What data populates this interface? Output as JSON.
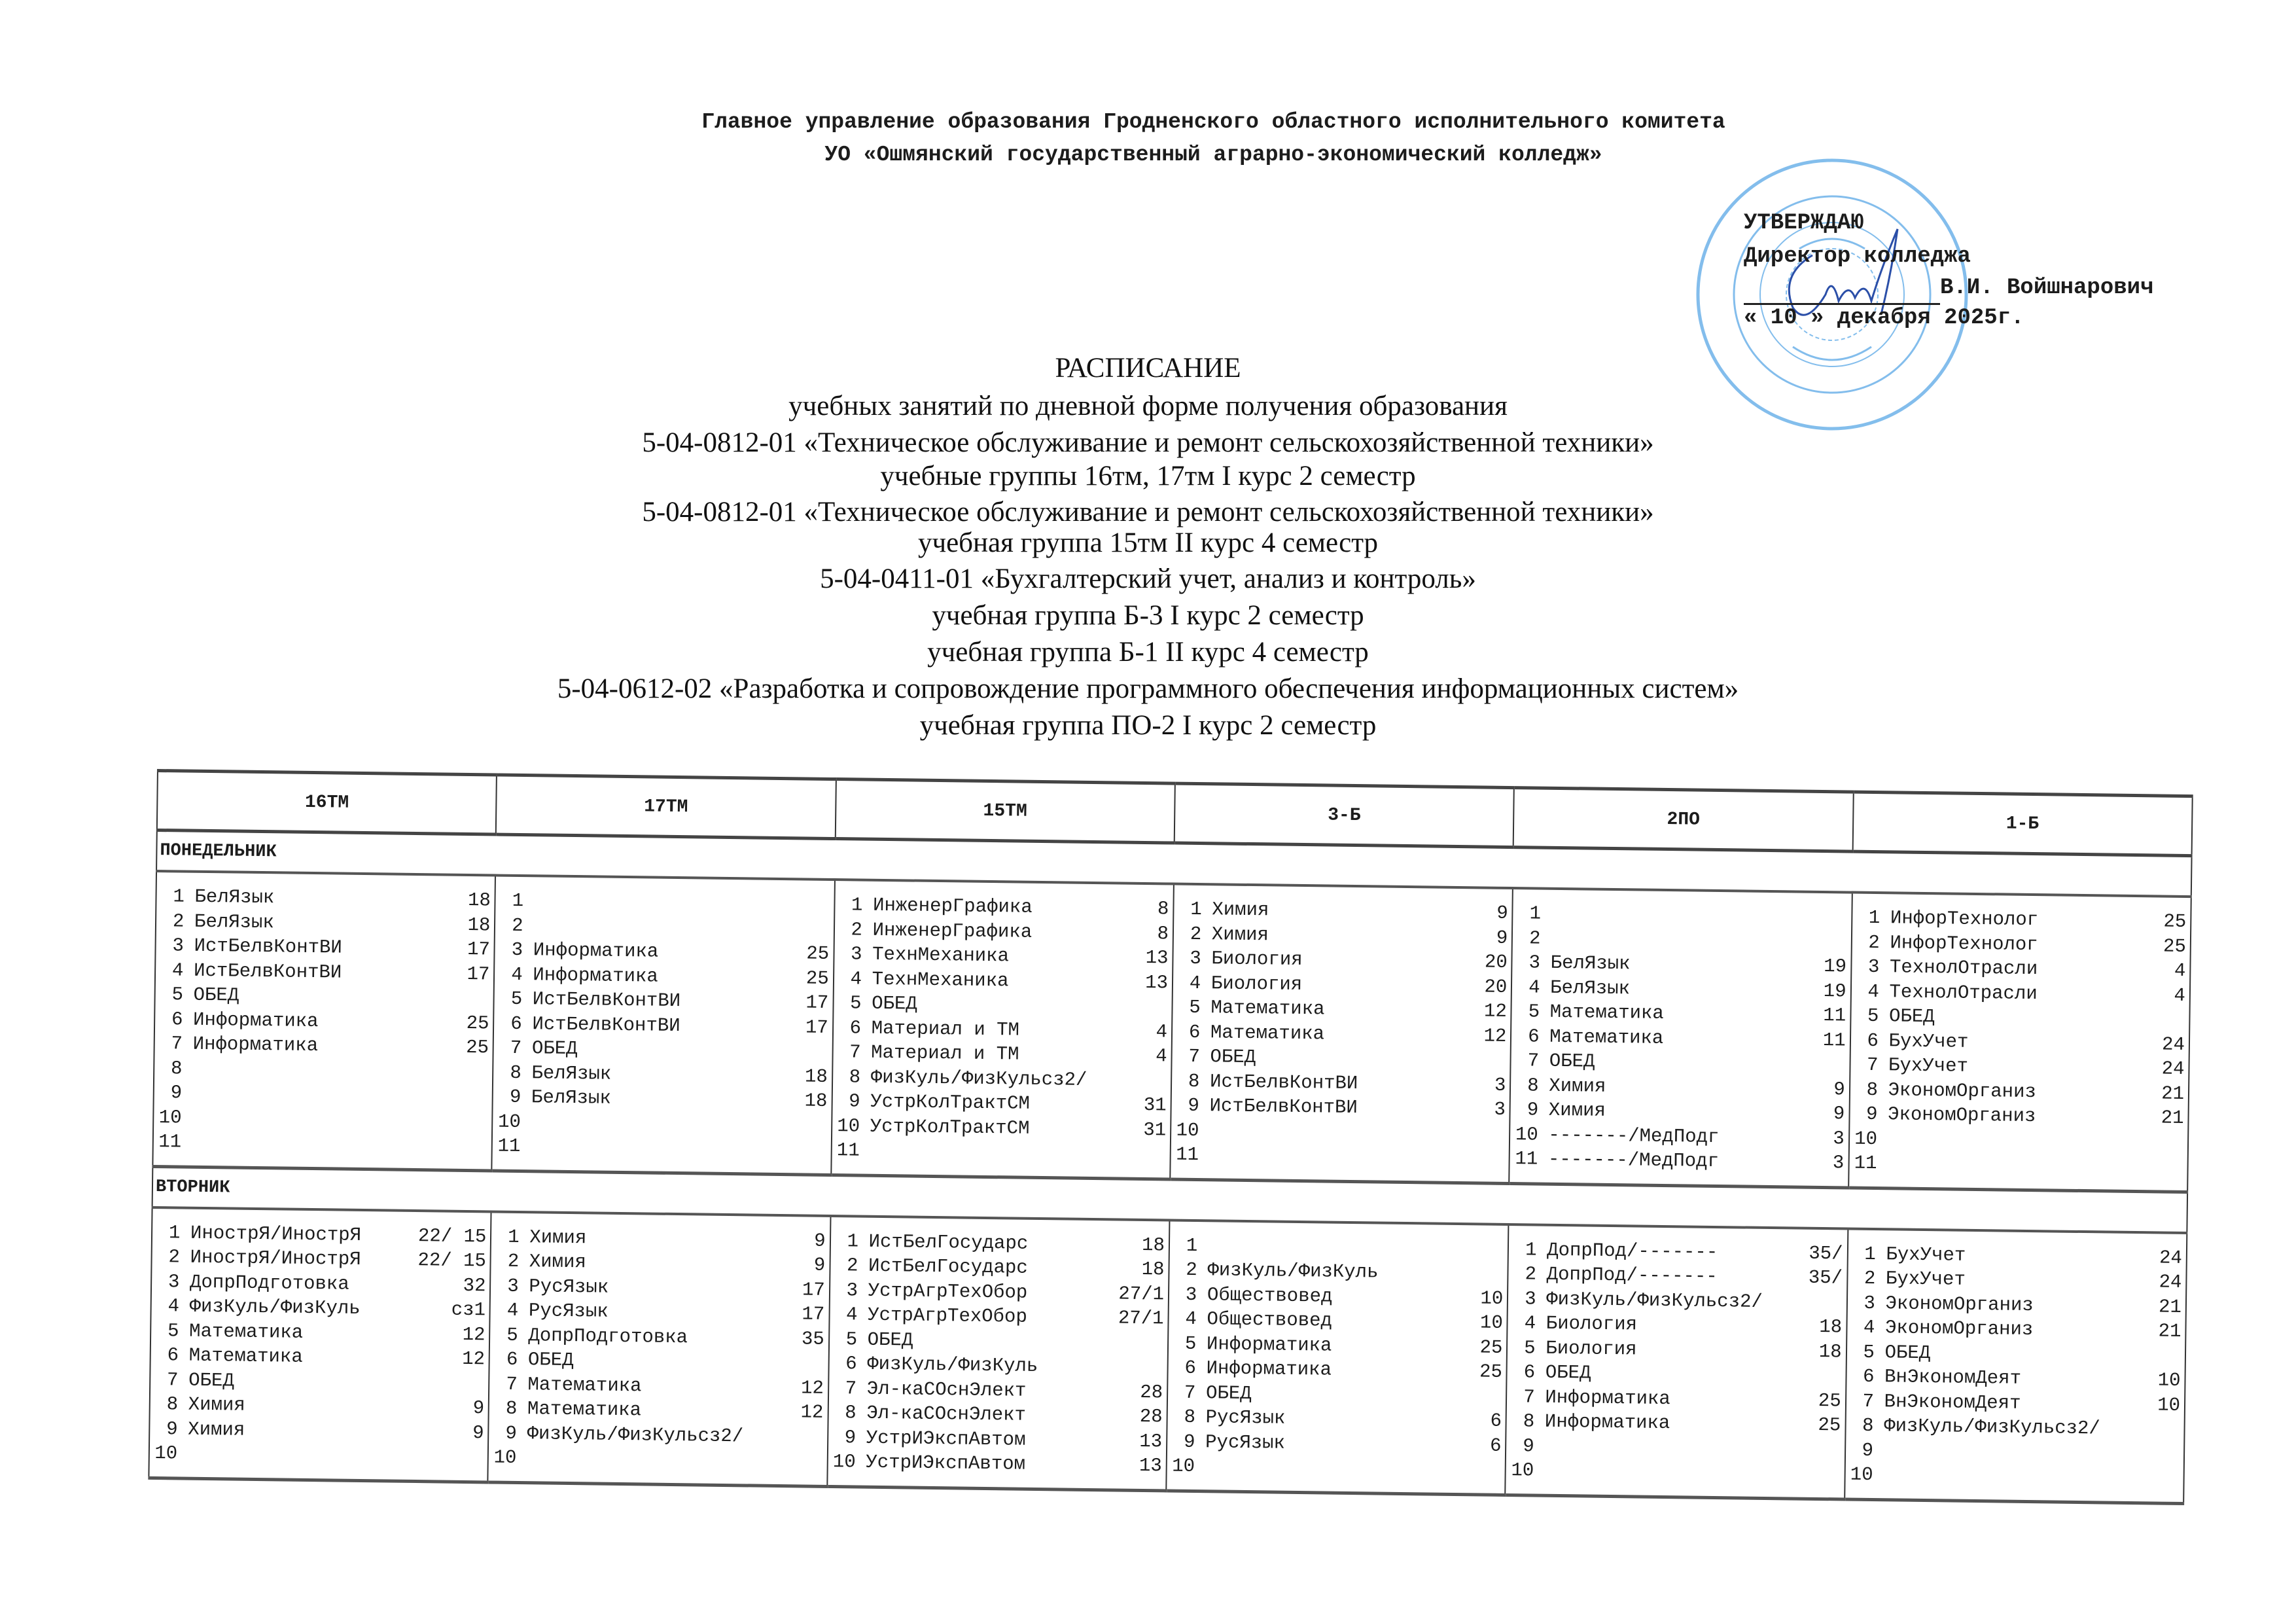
{
  "header": {
    "org_line1": "Главное управление образования Гродненского областного исполнительного комитета",
    "org_line2": "УО «Ошмянский государственный аграрно-экономический колледж»"
  },
  "approval": {
    "approve": "УТВЕРЖДАЮ",
    "position": "Директор колледжа",
    "name": "В.И. Войшнарович",
    "date": "« 10 » декабря 2025г.",
    "stamp_color": "#4a9fe0"
  },
  "title": {
    "main": "РАСПИСАНИЕ",
    "lines": [
      "учебных занятий по дневной форме получения образования",
      "5-04-0812-01 «Техническое обслуживание и ремонт сельскохозяйственной техники»",
      "учебные  группы 16тм, 17тм I курс 2 семестр",
      "5-04-0812-01 «Техническое обслуживание и ремонт сельскохозяйственной техники»",
      "учебная группа 15тм II курс 4 семестр",
      "5-04-0411-01 «Бухгалтерский учет, анализ и контроль»",
      "учебная группа Б-3 I курс 2 семестр",
      "учебная группа Б-1 II курс 4 семестр",
      "5-04-0612-02 «Разработка и сопровождение программного обеспечения информационных систем»",
      "учебная группа ПО-2  I курс 2 семестр"
    ]
  },
  "table": {
    "groups": [
      "16ТМ",
      "17ТМ",
      "15ТМ",
      "3-Б",
      "2ПО",
      "1-Б"
    ],
    "days": [
      {
        "name": "ПОНЕДЕЛЬНИК",
        "groups": [
          {
            "lessons": [
              [
                "1",
                "БелЯзык",
                "18"
              ],
              [
                "2",
                "БелЯзык",
                "18"
              ],
              [
                "3",
                "ИстБелвКонтВИ",
                "17"
              ],
              [
                "4",
                "ИстБелвКонтВИ",
                "17"
              ],
              [
                "5",
                "ОБЕД",
                ""
              ],
              [
                "6",
                "Информатика",
                "25"
              ],
              [
                "7",
                "Информатика",
                "25"
              ],
              [
                "8",
                "",
                ""
              ],
              [
                "9",
                "",
                ""
              ],
              [
                "10",
                "",
                ""
              ],
              [
                "11",
                "",
                ""
              ]
            ]
          },
          {
            "lessons": [
              [
                "1",
                "",
                ""
              ],
              [
                "2",
                "",
                ""
              ],
              [
                "3",
                "Информатика",
                "25"
              ],
              [
                "4",
                "Информатика",
                "25"
              ],
              [
                "5",
                "ИстБелвКонтВИ",
                "17"
              ],
              [
                "6",
                "ИстБелвКонтВИ",
                "17"
              ],
              [
                "7",
                "ОБЕД",
                ""
              ],
              [
                "8",
                "БелЯзык",
                "18"
              ],
              [
                "9",
                "БелЯзык",
                "18"
              ],
              [
                "10",
                "",
                ""
              ],
              [
                "11",
                "",
                ""
              ]
            ]
          },
          {
            "lessons": [
              [
                "1",
                "ИнженерГрафика",
                "8"
              ],
              [
                "2",
                "ИнженерГрафика",
                "8"
              ],
              [
                "3",
                "ТехнМеханика",
                "13"
              ],
              [
                "4",
                "ТехнМеханика",
                "13"
              ],
              [
                "5",
                "ОБЕД",
                ""
              ],
              [
                "6",
                "Материал и ТМ",
                "4"
              ],
              [
                "7",
                "Материал и ТМ",
                "4"
              ],
              [
                "8",
                "ФизКуль/ФизКульсз2/",
                ""
              ],
              [
                "9",
                "УстрКолТрактСМ",
                "31"
              ],
              [
                "10",
                "УстрКолТрактСМ",
                "31"
              ],
              [
                "11",
                "",
                ""
              ]
            ]
          },
          {
            "lessons": [
              [
                "1",
                "Химия",
                "9"
              ],
              [
                "2",
                "Химия",
                "9"
              ],
              [
                "3",
                "Биология",
                "20"
              ],
              [
                "4",
                "Биология",
                "20"
              ],
              [
                "5",
                "Математика",
                "12"
              ],
              [
                "6",
                "Математика",
                "12"
              ],
              [
                "7",
                "ОБЕД",
                ""
              ],
              [
                "8",
                "ИстБелвКонтВИ",
                "3"
              ],
              [
                "9",
                "ИстБелвКонтВИ",
                "3"
              ],
              [
                "10",
                "",
                ""
              ],
              [
                "11",
                "",
                ""
              ]
            ]
          },
          {
            "lessons": [
              [
                "1",
                "",
                ""
              ],
              [
                "2",
                "",
                ""
              ],
              [
                "3",
                "БелЯзык",
                "19"
              ],
              [
                "4",
                "БелЯзык",
                "19"
              ],
              [
                "5",
                "Математика",
                "11"
              ],
              [
                "6",
                "Математика",
                "11"
              ],
              [
                "7",
                "ОБЕД",
                ""
              ],
              [
                "8",
                "Химия",
                "9"
              ],
              [
                "9",
                "Химия",
                "9"
              ],
              [
                "10",
                "-------/МедПодг",
                "3"
              ],
              [
                "11",
                "-------/МедПодг",
                "3"
              ]
            ]
          },
          {
            "lessons": [
              [
                "1",
                "ИнфорТехнолог",
                "25"
              ],
              [
                "2",
                "ИнфорТехнолог",
                "25"
              ],
              [
                "3",
                "ТехнолОтрасли",
                "4"
              ],
              [
                "4",
                "ТехнолОтрасли",
                "4"
              ],
              [
                "5",
                "ОБЕД",
                ""
              ],
              [
                "6",
                "БухУчет",
                "24"
              ],
              [
                "7",
                "БухУчет",
                "24"
              ],
              [
                "8",
                "ЭкономОрганиз",
                "21"
              ],
              [
                "9",
                "ЭкономОрганиз",
                "21"
              ],
              [
                "10",
                "",
                ""
              ],
              [
                "11",
                "",
                ""
              ]
            ]
          }
        ]
      },
      {
        "name": "ВТОРНИК",
        "groups": [
          {
            "lessons": [
              [
                "1",
                "ИнострЯ/ИнострЯ",
                "22/ 15"
              ],
              [
                "2",
                "ИнострЯ/ИнострЯ",
                "22/ 15"
              ],
              [
                "3",
                "ДопрПодготовка",
                "32"
              ],
              [
                "4",
                "ФизКуль/ФизКуль",
                "сз1"
              ],
              [
                "5",
                "Математика",
                "12"
              ],
              [
                "6",
                "Математика",
                "12"
              ],
              [
                "7",
                "ОБЕД",
                ""
              ],
              [
                "8",
                "Химия",
                "9"
              ],
              [
                "9",
                "Химия",
                "9"
              ],
              [
                "10",
                "",
                ""
              ]
            ]
          },
          {
            "lessons": [
              [
                "1",
                "Химия",
                "9"
              ],
              [
                "2",
                "Химия",
                "9"
              ],
              [
                "3",
                "РусЯзык",
                "17"
              ],
              [
                "4",
                "РусЯзык",
                "17"
              ],
              [
                "5",
                "ДопрПодготовка",
                "35"
              ],
              [
                "6",
                "ОБЕД",
                ""
              ],
              [
                "7",
                "Математика",
                "12"
              ],
              [
                "8",
                "Математика",
                "12"
              ],
              [
                "9",
                "ФизКуль/ФизКульсз2/",
                ""
              ],
              [
                "10",
                "",
                ""
              ]
            ]
          },
          {
            "lessons": [
              [
                "1",
                "ИстБелГосударс",
                "18"
              ],
              [
                "2",
                "ИстБелГосударс",
                "18"
              ],
              [
                "3",
                "УстрАгрТехОбор",
                "27/1"
              ],
              [
                "4",
                "УстрАгрТехОбор",
                "27/1"
              ],
              [
                "5",
                "ОБЕД",
                ""
              ],
              [
                "6",
                "ФизКуль/ФизКуль",
                ""
              ],
              [
                "7",
                "Эл-каСОснЭлект",
                "28"
              ],
              [
                "8",
                "Эл-каСОснЭлект",
                "28"
              ],
              [
                "9",
                "УстрИЭкспАвтом",
                "13"
              ],
              [
                "10",
                "УстрИЭкспАвтом",
                "13"
              ]
            ]
          },
          {
            "lessons": [
              [
                "1",
                "",
                ""
              ],
              [
                "2",
                "ФизКуль/ФизКуль",
                ""
              ],
              [
                "3",
                "Обществовед",
                "10"
              ],
              [
                "4",
                "Обществовед",
                "10"
              ],
              [
                "5",
                "Информатика",
                "25"
              ],
              [
                "6",
                "Информатика",
                "25"
              ],
              [
                "7",
                "ОБЕД",
                ""
              ],
              [
                "8",
                "РусЯзык",
                "6"
              ],
              [
                "9",
                "РусЯзык",
                "6"
              ],
              [
                "10",
                "",
                ""
              ]
            ]
          },
          {
            "lessons": [
              [
                "1",
                "ДопрПод/-------",
                "35/"
              ],
              [
                "2",
                "ДопрПод/-------",
                "35/"
              ],
              [
                "3",
                "ФизКуль/ФизКульсз2/",
                ""
              ],
              [
                "4",
                "Биология",
                "18"
              ],
              [
                "5",
                "Биология",
                "18"
              ],
              [
                "6",
                "ОБЕД",
                ""
              ],
              [
                "7",
                "Информатика",
                "25"
              ],
              [
                "8",
                "Информатика",
                "25"
              ],
              [
                "9",
                "",
                ""
              ],
              [
                "10",
                "",
                ""
              ]
            ]
          },
          {
            "lessons": [
              [
                "1",
                "БухУчет",
                "24"
              ],
              [
                "2",
                "БухУчет",
                "24"
              ],
              [
                "3",
                "ЭкономОрганиз",
                "21"
              ],
              [
                "4",
                "ЭкономОрганиз",
                "21"
              ],
              [
                "5",
                "ОБЕД",
                ""
              ],
              [
                "6",
                "ВнЭкономДеят",
                "10"
              ],
              [
                "7",
                "ВнЭкономДеят",
                "10"
              ],
              [
                "8",
                "ФизКуль/ФизКульсз2/",
                ""
              ],
              [
                "9",
                "",
                ""
              ],
              [
                "10",
                "",
                ""
              ]
            ]
          }
        ]
      }
    ]
  }
}
